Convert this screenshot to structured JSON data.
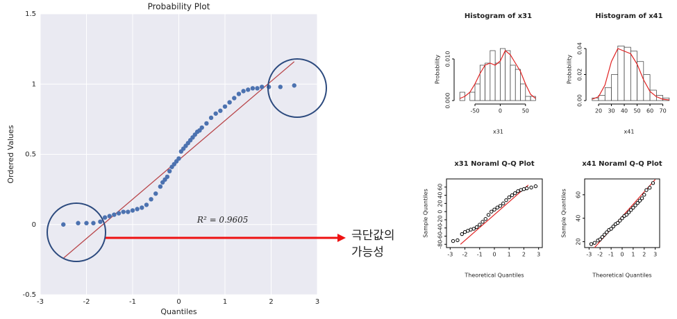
{
  "chart_data": [
    {
      "type": "scatter",
      "title": "Probability Plot",
      "xlabel": "Quantiles",
      "ylabel": "Ordered Values",
      "xlim": [
        -3,
        3
      ],
      "ylim": [
        -0.5,
        1.5
      ],
      "xticks": [
        -3,
        -2,
        -1,
        0,
        1,
        2,
        3
      ],
      "yticks": [
        -0.5,
        0,
        0.5,
        1,
        1.5
      ],
      "grid": true,
      "background": "#eaeaf2",
      "color": "#4c72b0",
      "line_color": "#b9474b",
      "x": [
        -2.5,
        -2.18,
        -2.0,
        -1.85,
        -1.7,
        -1.6,
        -1.5,
        -1.4,
        -1.3,
        -1.2,
        -1.1,
        -1.0,
        -0.9,
        -0.8,
        -0.7,
        -0.6,
        -0.5,
        -0.4,
        -0.35,
        -0.3,
        -0.25,
        -0.2,
        -0.15,
        -0.1,
        -0.05,
        0,
        0.05,
        0.1,
        0.15,
        0.2,
        0.25,
        0.3,
        0.35,
        0.4,
        0.45,
        0.5,
        0.6,
        0.7,
        0.8,
        0.9,
        1.0,
        1.1,
        1.2,
        1.3,
        1.4,
        1.5,
        1.6,
        1.7,
        1.8,
        1.95,
        2.2,
        2.5
      ],
      "values": [
        0.0,
        0.01,
        0.01,
        0.01,
        0.02,
        0.05,
        0.06,
        0.07,
        0.08,
        0.09,
        0.09,
        0.1,
        0.11,
        0.12,
        0.14,
        0.18,
        0.22,
        0.27,
        0.3,
        0.32,
        0.34,
        0.38,
        0.41,
        0.43,
        0.45,
        0.47,
        0.52,
        0.54,
        0.56,
        0.58,
        0.6,
        0.62,
        0.64,
        0.66,
        0.67,
        0.69,
        0.72,
        0.76,
        0.79,
        0.81,
        0.84,
        0.87,
        0.9,
        0.93,
        0.95,
        0.96,
        0.97,
        0.97,
        0.98,
        0.98,
        0.98,
        0.99
      ],
      "fit_line": {
        "x": [
          -2.5,
          2.5
        ],
        "y": [
          -0.24,
          1.16
        ]
      },
      "annotation": "R² = 0.9605"
    },
    {
      "type": "histogram",
      "title": "Histogram of x31",
      "xlabel": "x31",
      "ylabel": "Probability",
      "xlim": [
        -83,
        75
      ],
      "ylim": [
        0,
        0.015
      ],
      "xticks": [
        -50,
        0,
        50
      ],
      "yticks": [
        {
          "value": 0,
          "label": "0.000"
        },
        {
          "value": 0.01,
          "label": "0.010"
        }
      ],
      "grid": false,
      "color": "#ffffff",
      "line_color": "#e02020",
      "bins": [
        -80,
        -70,
        -60,
        -50,
        -40,
        -30,
        -20,
        -10,
        0,
        10,
        20,
        30,
        40,
        50,
        60,
        70
      ],
      "values": [
        0.002,
        0.0,
        0.002,
        0.004,
        0.0085,
        0.009,
        0.012,
        0.009,
        0.0125,
        0.012,
        0.0085,
        0.0075,
        0.004,
        0.001,
        0.001
      ],
      "density": {
        "x": [
          -80,
          -70,
          -60,
          -50,
          -40,
          -30,
          -20,
          -10,
          0,
          10,
          20,
          30,
          40,
          50,
          60,
          70
        ],
        "y": [
          0.0005,
          0.001,
          0.002,
          0.004,
          0.0065,
          0.0085,
          0.009,
          0.0085,
          0.0095,
          0.012,
          0.011,
          0.009,
          0.007,
          0.004,
          0.0015,
          0.0005
        ]
      }
    },
    {
      "type": "histogram",
      "title": "Histogram of x41",
      "xlabel": "x41",
      "ylabel": "Probability",
      "xlim": [
        13.5,
        74
      ],
      "ylim": [
        0,
        0.048
      ],
      "xticks": [
        20,
        30,
        40,
        50,
        60,
        70
      ],
      "yticks": [
        {
          "value": 0,
          "label": "0.00"
        },
        {
          "value": 0.02,
          "label": "0.02"
        },
        {
          "value": 0.04,
          "label": "0.04"
        }
      ],
      "grid": false,
      "color": "#ffffff",
      "line_color": "#e02020",
      "bins": [
        15,
        20,
        25,
        30,
        35,
        40,
        45,
        50,
        55,
        60,
        65,
        70,
        75
      ],
      "values": [
        0.002,
        0.004,
        0.01,
        0.02,
        0.042,
        0.041,
        0.038,
        0.03,
        0.02,
        0.008,
        0.004,
        0.002
      ],
      "density": {
        "x": [
          15,
          20,
          25,
          30,
          35,
          40,
          45,
          50,
          55,
          60,
          65,
          70,
          75
        ],
        "y": [
          0.001,
          0.003,
          0.012,
          0.03,
          0.04,
          0.038,
          0.036,
          0.028,
          0.016,
          0.007,
          0.003,
          0.001,
          0.0005
        ]
      }
    },
    {
      "type": "qq",
      "title": "x31 Noraml Q-Q Plot",
      "xlabel": "Theoretical Quantiles",
      "ylabel": "Sample Quantiles",
      "xlim": [
        -3.25,
        3.25
      ],
      "ylim": [
        -88,
        80
      ],
      "xticks": [
        -3,
        -2,
        -1,
        0,
        1,
        2,
        3
      ],
      "yticks": [
        -80,
        -60,
        -40,
        -20,
        0,
        20,
        40,
        60
      ],
      "grid": false,
      "color": "#000000",
      "line_color": "#e02020",
      "x": [
        -2.8,
        -2.5,
        -2.2,
        -2.0,
        -1.8,
        -1.6,
        -1.4,
        -1.2,
        -1.0,
        -0.8,
        -0.6,
        -0.4,
        -0.2,
        0,
        0.2,
        0.4,
        0.6,
        0.8,
        1.0,
        1.2,
        1.4,
        1.6,
        1.8,
        2.0,
        2.2,
        2.5,
        2.8
      ],
      "values": [
        -72,
        -70,
        -55,
        -50,
        -47,
        -44,
        -42,
        -38,
        -32,
        -25,
        -18,
        -8,
        0,
        5,
        10,
        14,
        20,
        28,
        35,
        40,
        45,
        50,
        53,
        55,
        57,
        59,
        62
      ],
      "fit_line": {
        "x": [
          -2.3,
          2.3
        ],
        "y": [
          -80,
          65
        ]
      }
    },
    {
      "type": "qq",
      "title": "x41 Noraml Q-Q Plot",
      "xlabel": "Theoretical Quantiles",
      "ylabel": "Sample Quantiles",
      "xlim": [
        -3.4,
        3.4
      ],
      "ylim": [
        15,
        73.5
      ],
      "xticks": [
        -3,
        -2,
        -1,
        0,
        1,
        2,
        3
      ],
      "yticks": [
        20,
        40,
        60
      ],
      "grid": false,
      "color": "#000000",
      "line_color": "#e02020",
      "x": [
        -2.8,
        -2.5,
        -2.2,
        -2.0,
        -1.8,
        -1.6,
        -1.4,
        -1.2,
        -1.0,
        -0.8,
        -0.6,
        -0.4,
        -0.2,
        0,
        0.2,
        0.4,
        0.6,
        0.8,
        1.0,
        1.2,
        1.4,
        1.6,
        1.8,
        2.0,
        2.2,
        2.5,
        2.8
      ],
      "values": [
        18,
        19,
        21,
        22,
        24,
        26,
        28,
        30,
        31,
        33,
        35,
        36,
        38,
        40,
        42,
        43,
        45,
        47,
        49,
        51,
        53,
        55,
        57,
        60,
        64,
        66,
        70
      ],
      "fit_line": {
        "x": [
          -2.5,
          3.0
        ],
        "y": [
          15,
          73
        ]
      }
    }
  ],
  "annotations": [
    "극단값의",
    "가능성"
  ]
}
